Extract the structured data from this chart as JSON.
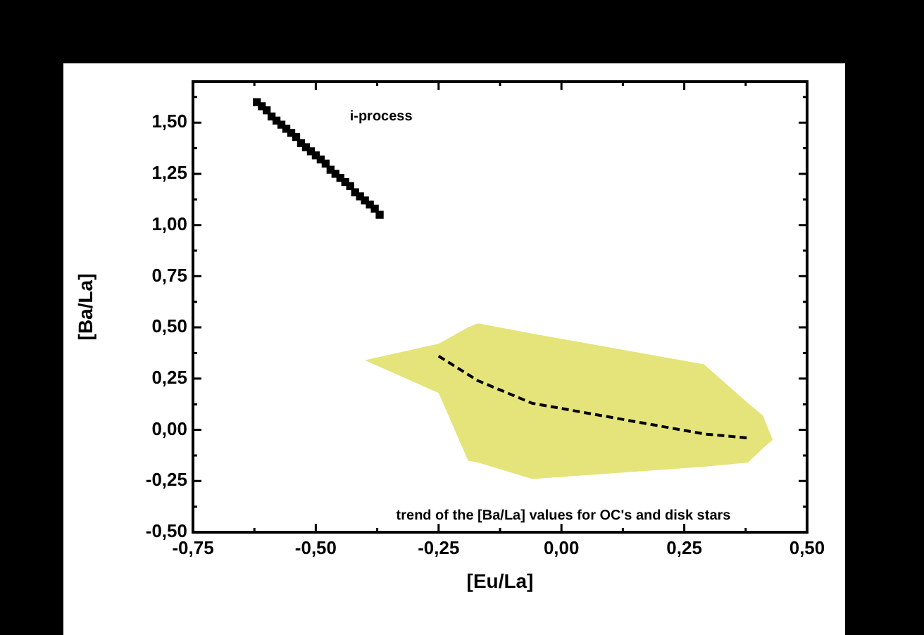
{
  "chart_data": {
    "type": "scatter",
    "annotations": [
      "trend of the [Ba/La] values for OC's and disk stars"
    ],
    "xlabel": "[Eu/La]",
    "ylabel": "[Ba/La]",
    "legend": false,
    "xlim": [
      -0.75,
      0.5
    ],
    "ylim": [
      -0.5,
      1.7
    ],
    "xticks": [
      {
        "value": -0.75,
        "label": "-0,75"
      },
      {
        "value": -0.625,
        "label": null
      },
      {
        "value": -0.5,
        "label": "-0,50"
      },
      {
        "value": -0.375,
        "label": null
      },
      {
        "value": -0.25,
        "label": "-0,25"
      },
      {
        "value": -0.125,
        "label": null
      },
      {
        "value": 0,
        "label": "0,00"
      },
      {
        "value": 0.125,
        "label": null
      },
      {
        "value": 0.25,
        "label": "0,25"
      },
      {
        "value": 0.375,
        "label": null
      },
      {
        "value": 0.5,
        "label": "0,50"
      }
    ],
    "yticks": [
      {
        "value": -0.5,
        "label": "-0,50"
      },
      {
        "value": -0.375,
        "label": null
      },
      {
        "value": -0.25,
        "label": "-0,25"
      },
      {
        "value": -0.125,
        "label": null
      },
      {
        "value": 0,
        "label": "0,00"
      },
      {
        "value": 0.125,
        "label": null
      },
      {
        "value": 0.25,
        "label": "0,25"
      },
      {
        "value": 0.375,
        "label": null
      },
      {
        "value": 0.5,
        "label": "0,50"
      },
      {
        "value": 0.625,
        "label": null
      },
      {
        "value": 0.75,
        "label": "0,75"
      },
      {
        "value": 0.875,
        "label": null
      },
      {
        "value": 1,
        "label": "1,00"
      },
      {
        "value": 1.125,
        "label": null
      },
      {
        "value": 1.25,
        "label": "1,25"
      },
      {
        "value": 1.375,
        "label": null
      },
      {
        "value": 1.5,
        "label": "1,50"
      },
      {
        "value": 1.625,
        "label": null
      }
    ],
    "series": [
      {
        "name": "i-process",
        "marker": "square",
        "color": "#000000",
        "x": [
          -0.62,
          -0.61,
          -0.6,
          -0.59,
          -0.58,
          -0.57,
          -0.56,
          -0.55,
          -0.54,
          -0.53,
          -0.52,
          -0.51,
          -0.5,
          -0.49,
          -0.48,
          -0.47,
          -0.46,
          -0.45,
          -0.44,
          -0.43,
          -0.42,
          -0.41,
          -0.4,
          -0.39,
          -0.38,
          -0.37
        ],
        "values": [
          1.6,
          1.58,
          1.56,
          1.53,
          1.51,
          1.49,
          1.47,
          1.45,
          1.43,
          1.4,
          1.38,
          1.36,
          1.34,
          1.32,
          1.3,
          1.27,
          1.25,
          1.23,
          1.21,
          1.19,
          1.16,
          1.14,
          1.12,
          1.1,
          1.08,
          1.05
        ]
      },
      {
        "type": "line",
        "marker": "none",
        "color": "#e4e47a",
        "x": [
          -0.4,
          -0.25,
          -0.19,
          -0.17,
          -0.06,
          0.29,
          0.38,
          0.41,
          0.43
        ],
        "values": [
          null,
          null,
          null,
          null,
          null,
          null,
          null,
          null,
          null
        ],
        "lower": [
          0.34,
          0.18,
          -0.15,
          -0.16,
          -0.24,
          -0.18,
          -0.16,
          -0.09,
          -0.05
        ],
        "upper": [
          0.34,
          0.42,
          0.5,
          0.52,
          0.47,
          0.32,
          0.13,
          0.07,
          -0.05
        ]
      },
      {
        "type": "line",
        "line_style": "dashed",
        "marker": "none",
        "color": "#000000",
        "x": [
          -0.25,
          -0.19,
          -0.17,
          -0.06,
          0.29,
          0.38
        ],
        "values": [
          0.36,
          0.27,
          0.24,
          0.13,
          -0.02,
          -0.04
        ]
      }
    ]
  }
}
